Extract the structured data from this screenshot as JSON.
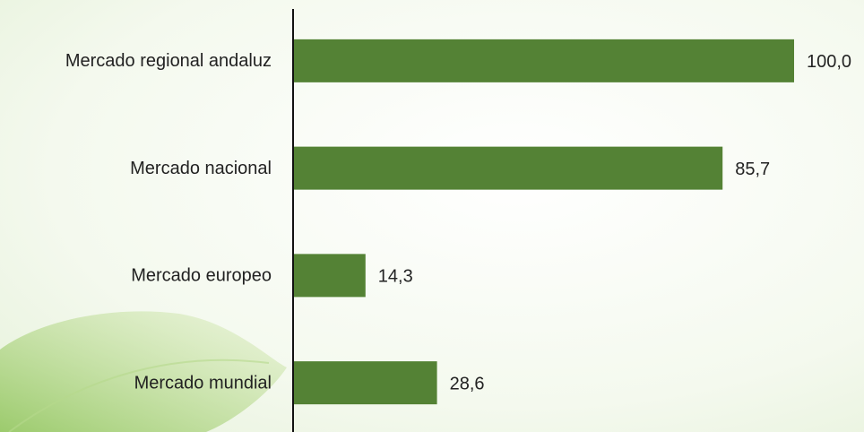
{
  "chart_data": {
    "type": "hbar",
    "categories": [
      "Mercado regional andaluz",
      "Mercado nacional",
      "Mercado europeo",
      "Mercado mundial"
    ],
    "values": [
      100,
      85.7,
      14.3,
      28.6
    ],
    "value_labels": [
      "100,0",
      "85,7",
      "14,3",
      "28,6"
    ],
    "color": "#548235",
    "xlim": [
      0,
      100
    ]
  }
}
